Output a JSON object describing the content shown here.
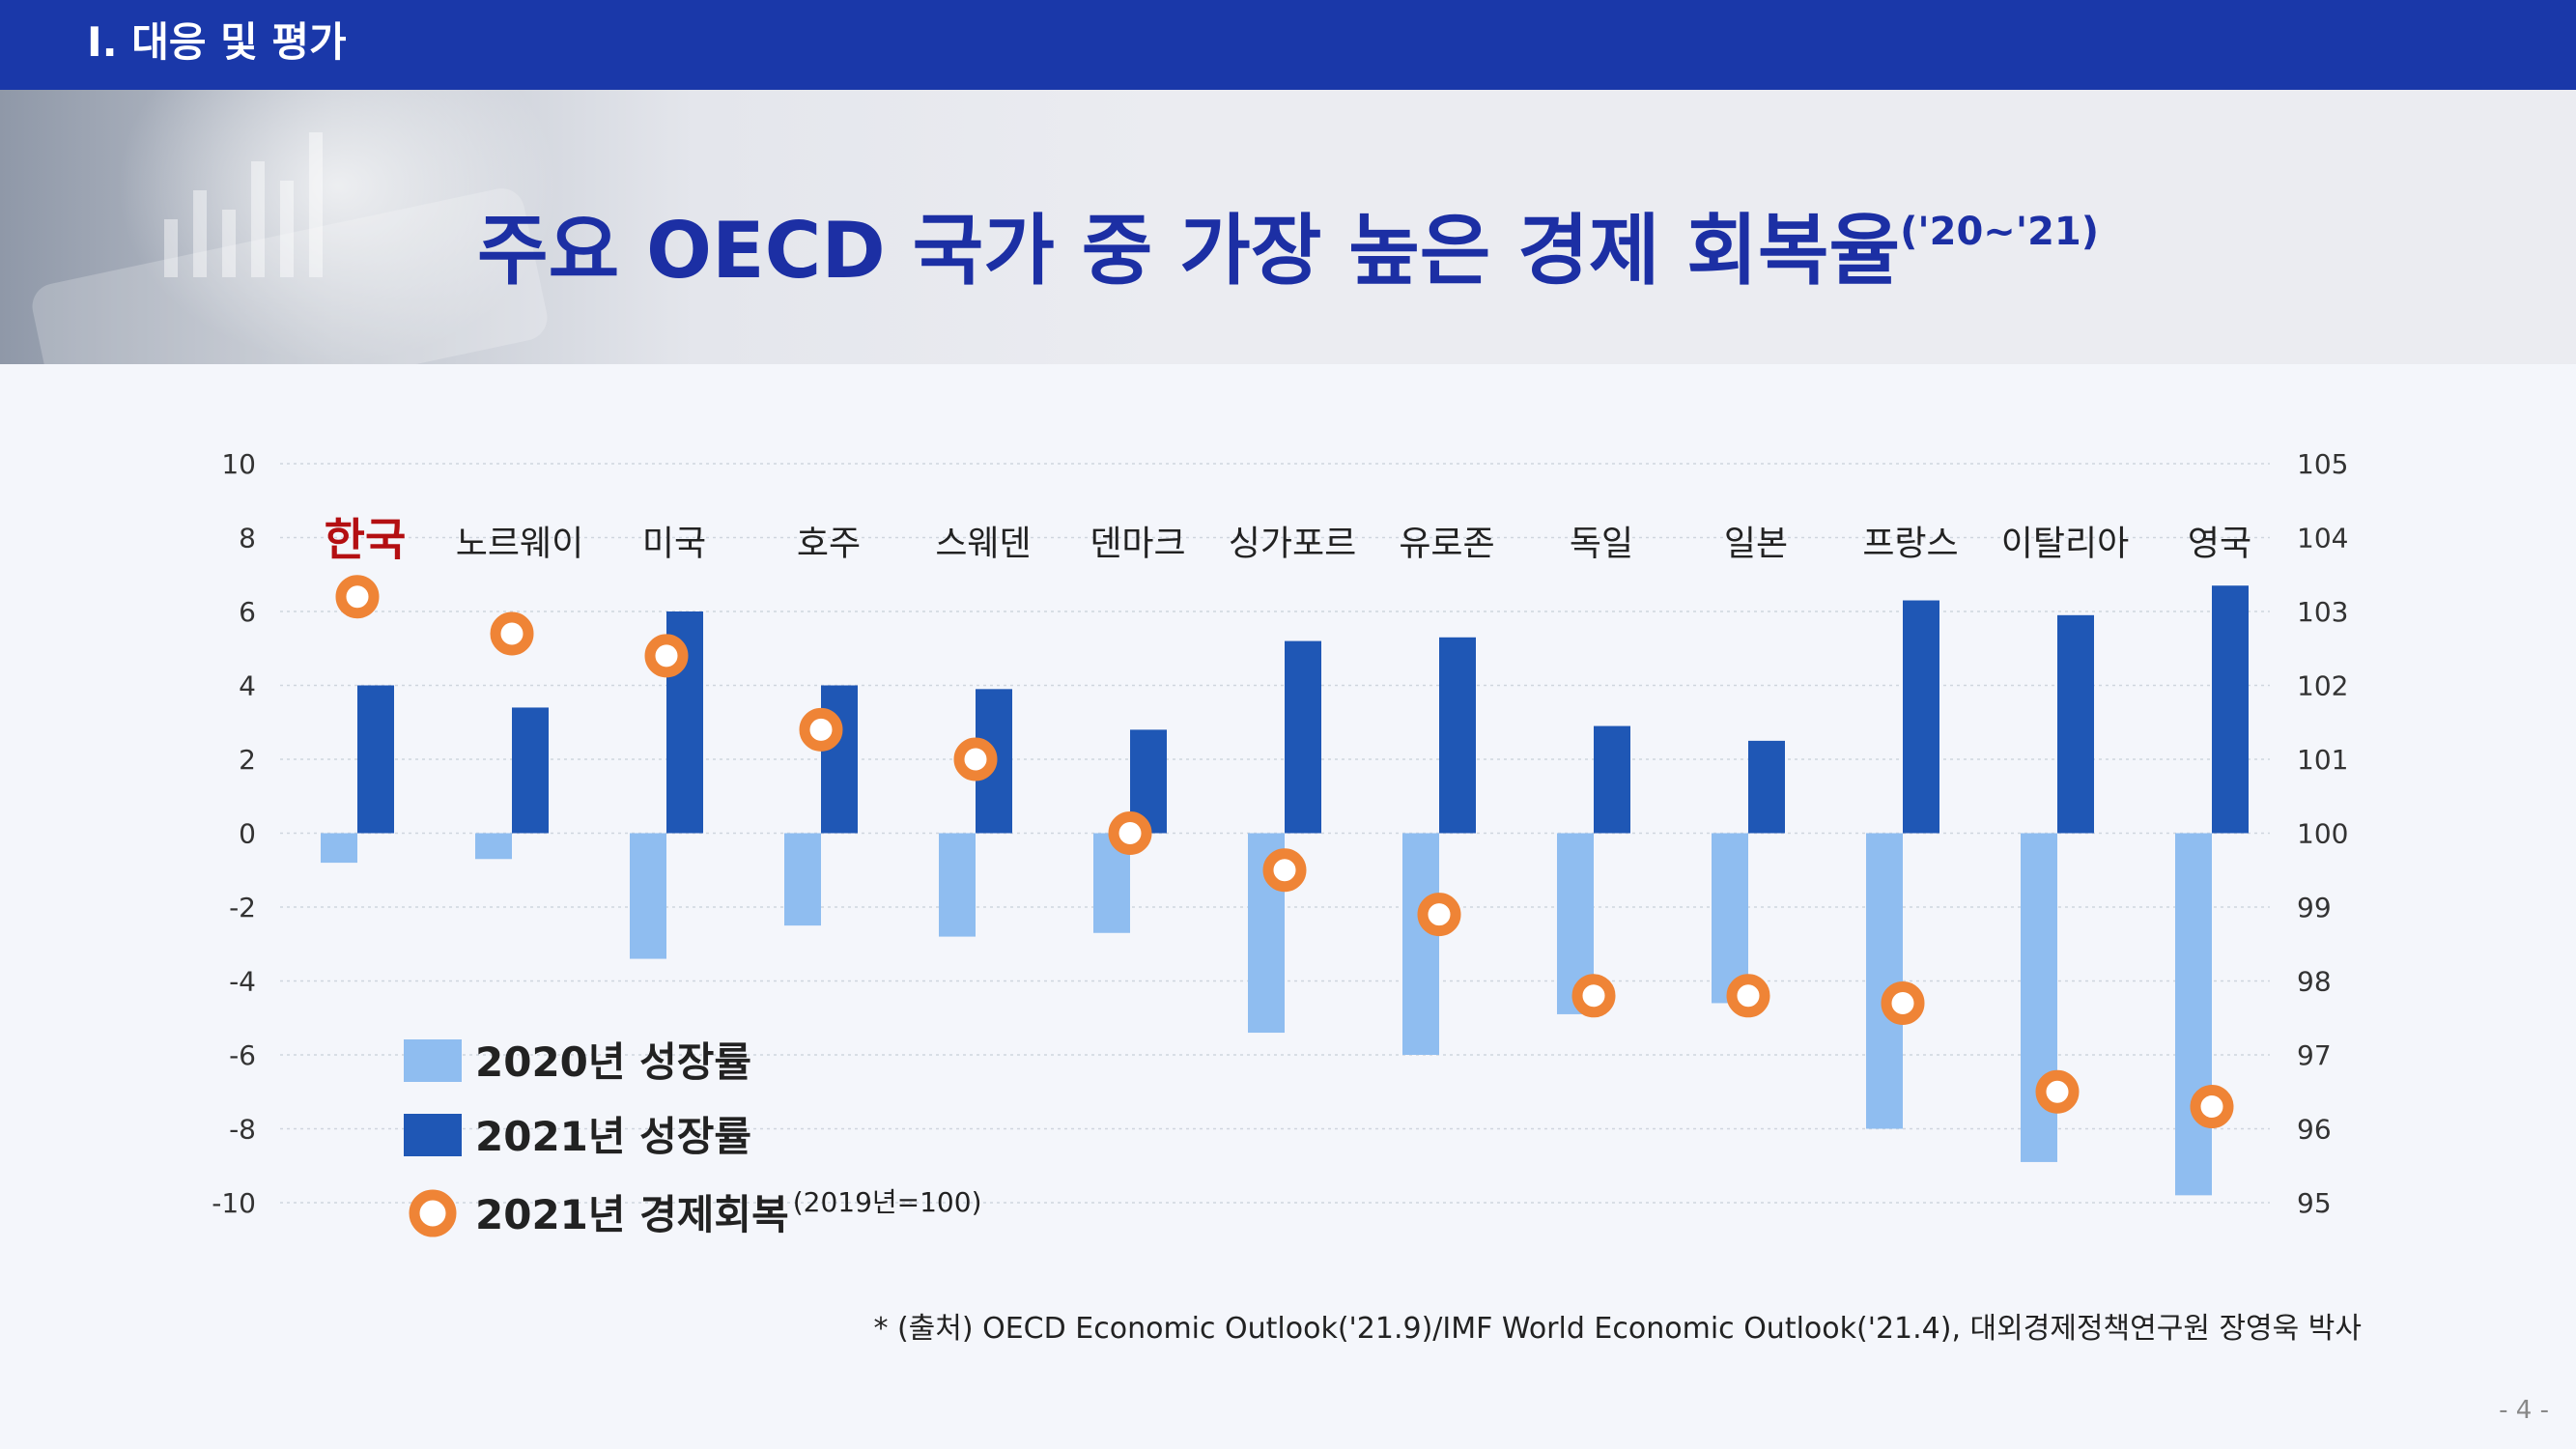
{
  "header": {
    "section": "Ⅰ. 대응 및 평가"
  },
  "title": {
    "main": "주요 OECD 국가 중 가장 높은 경제 회복율",
    "period": "('20~'21)"
  },
  "colors": {
    "bar2020": "#8fbdf0",
    "bar2021": "#1f57b5",
    "recovery": "#ef8436",
    "highlight": "#b40f12",
    "title": "#1c2fa4",
    "topbar": "#1a38a9"
  },
  "chart_data": {
    "type": "bar",
    "categories": [
      "한국",
      "노르웨이",
      "미국",
      "호주",
      "스웨덴",
      "덴마크",
      "싱가포르",
      "유로존",
      "독일",
      "일본",
      "프랑스",
      "이탈리아",
      "영국"
    ],
    "highlight_category": "한국",
    "series": [
      {
        "name": "2020년 성장률",
        "axis": "left",
        "marker": "bar",
        "values": [
          -0.8,
          -0.7,
          -3.4,
          -2.5,
          -2.8,
          -2.7,
          -5.4,
          -6.0,
          -4.9,
          -4.6,
          -8.0,
          -8.9,
          -9.8
        ]
      },
      {
        "name": "2021년 성장률",
        "axis": "left",
        "marker": "bar",
        "values": [
          4.0,
          3.4,
          6.0,
          4.0,
          3.9,
          2.8,
          5.2,
          5.3,
          2.9,
          2.5,
          6.3,
          5.9,
          6.7
        ]
      },
      {
        "name": "2021년 경제회복",
        "name_suffix": "(2019년=100)",
        "axis": "right",
        "marker": "circle",
        "values": [
          103.2,
          102.7,
          102.4,
          101.4,
          101.0,
          100.0,
          99.5,
          98.9,
          97.8,
          97.8,
          97.7,
          96.5,
          96.3
        ]
      }
    ],
    "y_left": {
      "min": -10,
      "max": 10,
      "ticks": [
        10,
        8,
        6,
        4,
        2,
        0,
        -2,
        -4,
        -6,
        -8,
        -10
      ]
    },
    "y_right": {
      "min": 95,
      "max": 105,
      "ticks": [
        105,
        104,
        103,
        102,
        101,
        100,
        99,
        98,
        97,
        96,
        95
      ]
    },
    "grid": true,
    "legend_position": "bottom-left"
  },
  "source": "* (출처) OECD Economic Outlook('21.9)/IMF World Economic Outlook('21.4), 대외경제정책연구원 장영욱 박사",
  "page_number": "- 4 -"
}
